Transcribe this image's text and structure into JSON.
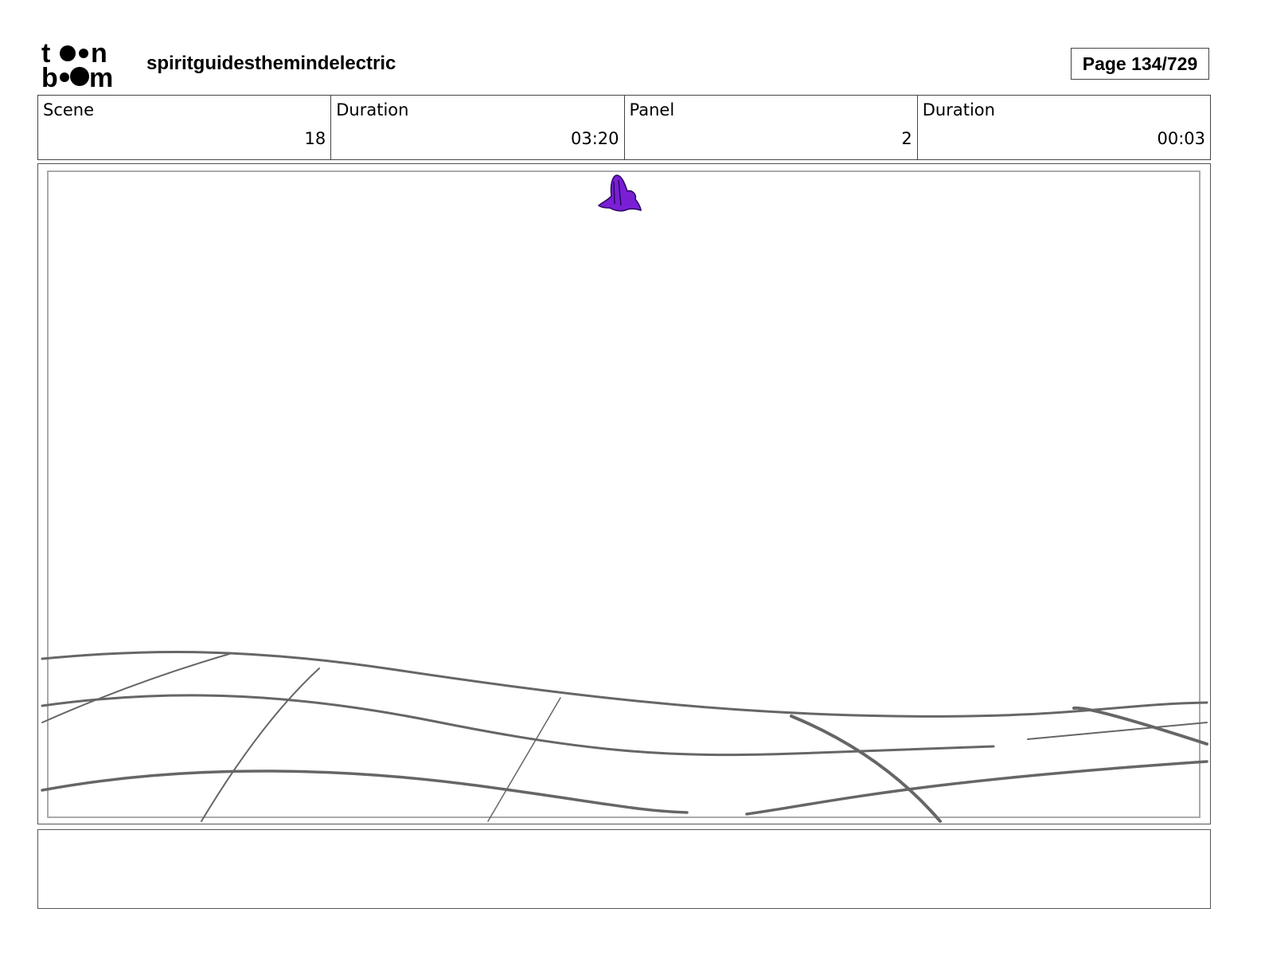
{
  "header": {
    "logo_text": "toon boom",
    "project_title": "spiritguidesthemindelectric",
    "page_label": "Page 134/729"
  },
  "info": [
    {
      "label": "Scene",
      "value": "18"
    },
    {
      "label": "Duration",
      "value": "03:20"
    },
    {
      "label": "Panel",
      "value": "2"
    },
    {
      "label": "Duration",
      "value": "00:03"
    }
  ],
  "panel": {
    "figure_color": "#7a1fd6",
    "sketch_color": "#666666"
  },
  "notes": {
    "text": ""
  }
}
